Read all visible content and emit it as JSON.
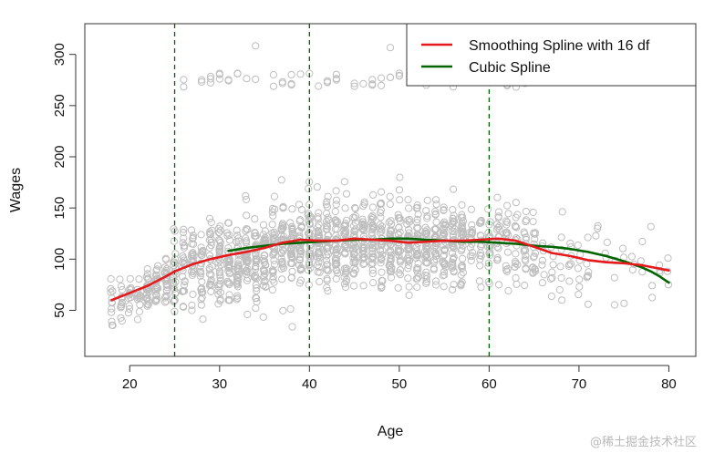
{
  "chart_data": {
    "type": "scatter",
    "title": "",
    "xlabel": "Age",
    "ylabel": "Wages",
    "xlim": [
      15,
      83
    ],
    "ylim": [
      5,
      330
    ],
    "x_ticks": [
      20,
      30,
      40,
      50,
      60,
      70,
      80
    ],
    "y_ticks": [
      50,
      100,
      150,
      200,
      250,
      300
    ],
    "grid": false,
    "knots": [
      25,
      40,
      60
    ],
    "knot_color": "#006400",
    "point_color": "#bebebe",
    "legend_position": "top-right",
    "series": [
      {
        "name": "Smoothing Spline with 16 df",
        "kind": "line",
        "color": "#e41a1c",
        "x": [
          18,
          20,
          22,
          24,
          25,
          27,
          29,
          31,
          33,
          35,
          37,
          39,
          41,
          43,
          45,
          47,
          49,
          51,
          53,
          55,
          57,
          59,
          61,
          63,
          65,
          67,
          69,
          71,
          73,
          75,
          77,
          80
        ],
        "y": [
          60,
          67,
          74,
          83,
          88,
          95,
          100,
          104,
          107,
          111,
          116,
          119,
          118,
          118,
          120,
          119,
          118,
          116,
          117,
          118,
          118,
          119,
          120,
          118,
          112,
          106,
          103,
          99,
          97,
          96,
          94,
          89
        ]
      },
      {
        "name": "Cubic Spline",
        "kind": "line",
        "color": "#006400",
        "x": [
          31,
          33,
          35,
          37,
          39,
          41,
          43,
          45,
          47,
          49,
          51,
          53,
          55,
          57,
          59,
          61,
          63,
          65,
          67,
          69,
          71,
          73,
          75,
          77,
          78,
          79,
          80
        ],
        "y": [
          108,
          111,
          113,
          115,
          116,
          117,
          118,
          119,
          119,
          120,
          120,
          119,
          118,
          117,
          117,
          116,
          115,
          113,
          112,
          110,
          107,
          103,
          98,
          92,
          88,
          83,
          77
        ]
      }
    ]
  },
  "watermark": "@稀土掘金技术社区"
}
